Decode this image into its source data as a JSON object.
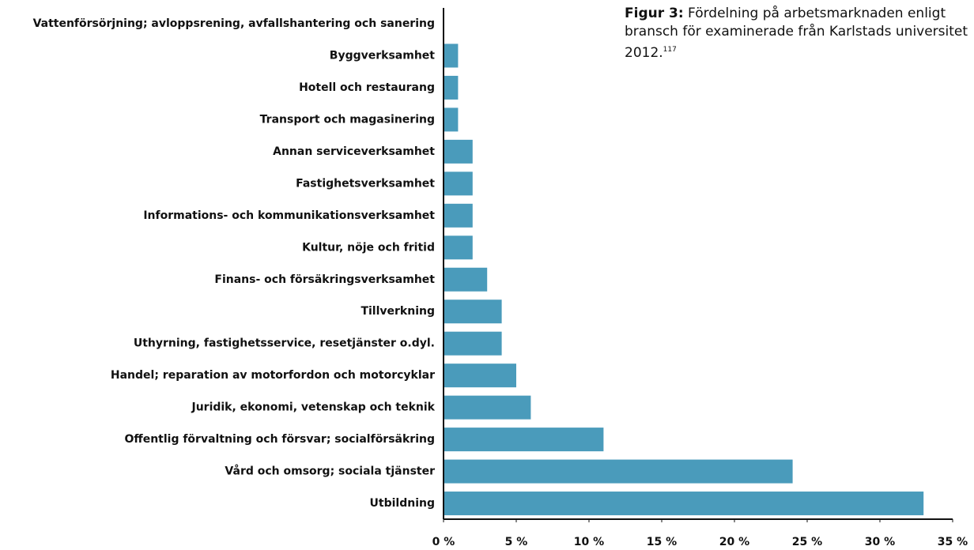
{
  "chart_data": {
    "type": "hbar",
    "annotation": {
      "label": "Figur 3:",
      "text": "Fördelning på arbetsmarknaden enligt bransch för examinerade från Karlstads universitet 2012.",
      "footnote": "117"
    },
    "categories": [
      "Vattenförsörjning; avloppsrening, avfallshantering och sanering",
      "Byggverksamhet",
      "Hotell och restaurang",
      "Transport och magasinering",
      "Annan serviceverksamhet",
      "Fastighetsverksamhet",
      "Informations- och kommunikationsverksamhet",
      "Kultur, nöje och fritid",
      "Finans- och försäkringsverksamhet",
      "Tillverkning",
      "Uthyrning, fastighetsservice, resetjänster o.dyl.",
      "Handel; reparation av motorfordon och motorcyklar",
      "Juridik, ekonomi, vetenskap och teknik",
      "Offentlig förvaltning och försvar; socialförsäkring",
      "Vård och omsorg; sociala tjänster",
      "Utbildning"
    ],
    "values": [
      0,
      1,
      1,
      1,
      2,
      2,
      2,
      2,
      3,
      4,
      4,
      5,
      6,
      11,
      24,
      33
    ],
    "color": "#4a9bbb",
    "xlim": [
      0,
      35
    ],
    "xticks": [
      {
        "value": 0,
        "label": "0 %"
      },
      {
        "value": 5,
        "label": "5 %"
      },
      {
        "value": 10,
        "label": "10 %"
      },
      {
        "value": 15,
        "label": "15 %"
      },
      {
        "value": 20,
        "label": "20 %"
      },
      {
        "value": 25,
        "label": "25 %"
      },
      {
        "value": 30,
        "label": "30 %"
      },
      {
        "value": 35,
        "label": "35 %"
      }
    ]
  }
}
